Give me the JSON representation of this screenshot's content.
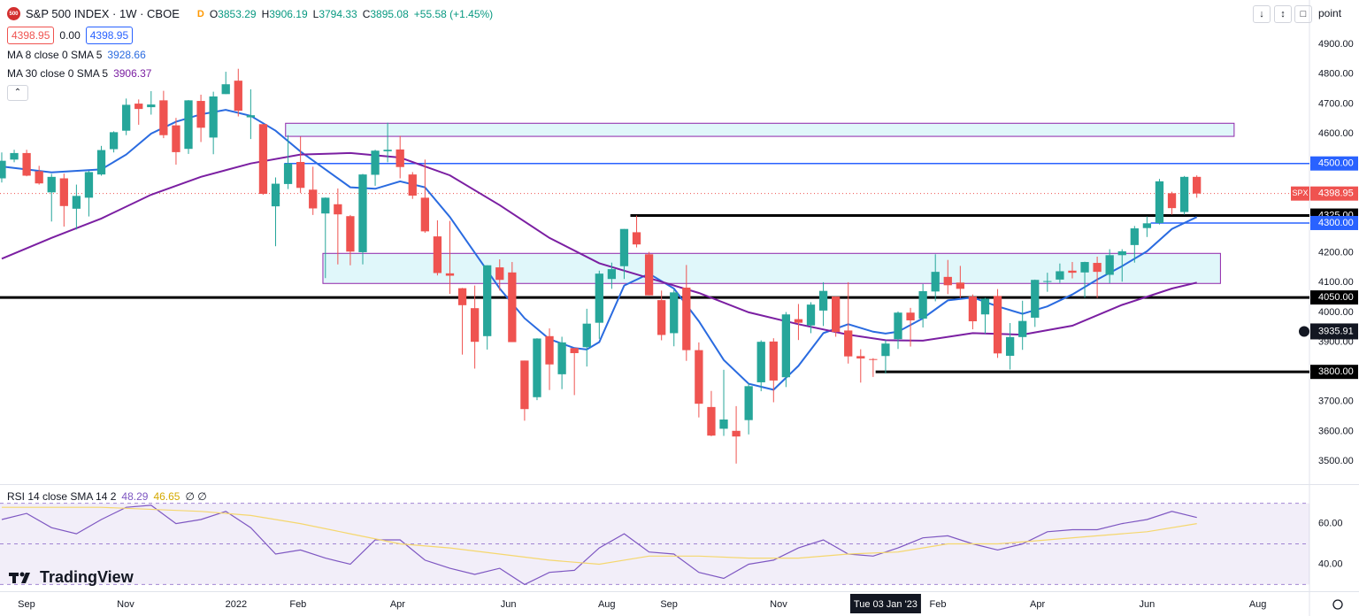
{
  "header": {
    "logo_text": "500",
    "symbol": "S&P 500 INDEX · 1W · CBOE",
    "badge": "D",
    "ohlc": [
      {
        "label": "O",
        "value": 3853.29
      },
      {
        "label": "H",
        "value": 3906.19
      },
      {
        "label": "L",
        "value": 3794.33
      },
      {
        "label": "C",
        "value": 3895.08
      }
    ],
    "change": "+55.58 (+1.45%)",
    "bid": 4398.95,
    "spread": {
      "value": 0,
      "label": "0.00"
    },
    "ask": 4398.95,
    "scale_mode": "point",
    "watermark": "TradingView"
  },
  "chart_data": [
    {
      "type": "candlestick",
      "up_color": "#26a69a",
      "down_color": "#ef5350",
      "xlim": [
        -0.14,
        105.05
      ],
      "ylim": [
        3423,
        5049
      ],
      "yticks": [
        {
          "value": 3500,
          "label": "3500.00"
        },
        {
          "value": 3600,
          "label": "3600.00"
        },
        {
          "value": 3700,
          "label": "3700.00"
        },
        {
          "value": 3800,
          "label": "3800.00"
        },
        {
          "value": 3900,
          "label": "3900.00"
        },
        {
          "value": 4000,
          "label": "4000.00"
        },
        {
          "value": 4100,
          "label": "4100.00"
        },
        {
          "value": 4200,
          "label": "4200.00"
        },
        {
          "value": 4300,
          "label": "4300.00"
        },
        {
          "value": 4400,
          "label": "4400.00"
        },
        {
          "value": 4500,
          "label": "4500.00"
        },
        {
          "value": 4600,
          "label": "4600.00"
        },
        {
          "value": 4700,
          "label": "4700.00"
        },
        {
          "value": 4800,
          "label": "4800.00"
        },
        {
          "value": 4900,
          "label": "4900.00"
        }
      ],
      "xticks": [
        {
          "value": 1.99,
          "label": "Sep"
        },
        {
          "value": 9.95,
          "label": "Nov"
        },
        {
          "value": 18.83,
          "label": "2022"
        },
        {
          "value": 23.8,
          "label": "Feb"
        },
        {
          "value": 31.8,
          "label": "Apr"
        },
        {
          "value": 40.7,
          "label": "Jun"
        },
        {
          "value": 48.6,
          "label": "Aug"
        },
        {
          "value": 53.6,
          "label": "Sep"
        },
        {
          "value": 62.4,
          "label": "Nov"
        },
        {
          "value": 75.2,
          "label": "Feb"
        },
        {
          "value": 83.2,
          "label": "Apr"
        },
        {
          "value": 92.0,
          "label": "Jun"
        },
        {
          "value": 100.9,
          "label": "Aug"
        }
      ],
      "ohlc": [
        [
          4450,
          4537,
          4436,
          4509
        ],
        [
          4513,
          4546,
          4504,
          4535
        ],
        [
          4535,
          4546,
          4457,
          4459
        ],
        [
          4474,
          4492,
          4429,
          4433
        ],
        [
          4403,
          4465,
          4305,
          4455
        ],
        [
          4450,
          4466,
          4288,
          4357
        ],
        [
          4348,
          4429,
          4278,
          4391
        ],
        [
          4385,
          4475,
          4322,
          4471
        ],
        [
          4463,
          4559,
          4459,
          4545
        ],
        [
          4548,
          4608,
          4537,
          4605
        ],
        [
          4610,
          4718,
          4595,
          4697
        ],
        [
          4701,
          4715,
          4630,
          4683
        ],
        [
          4689,
          4743,
          4664,
          4698
        ],
        [
          4712,
          4744,
          4585,
          4595
        ],
        [
          4628,
          4653,
          4496,
          4538
        ],
        [
          4549,
          4713,
          4532,
          4712
        ],
        [
          4710,
          4731,
          4572,
          4620
        ],
        [
          4587,
          4741,
          4531,
          4725
        ],
        [
          4733,
          4808,
          4733,
          4766
        ],
        [
          4778,
          4818,
          4658,
          4677
        ],
        [
          4655,
          4749,
          4582,
          4662
        ],
        [
          4632,
          4632,
          4395,
          4398
        ],
        [
          4356,
          4453,
          4222,
          4432
        ],
        [
          4431,
          4595,
          4414,
          4500
        ],
        [
          4505,
          4590,
          4401,
          4418
        ],
        [
          4412,
          4489,
          4327,
          4349
        ],
        [
          4332,
          4386,
          4115,
          4385
        ],
        [
          4363,
          4416,
          4161,
          4329
        ],
        [
          4323,
          4327,
          4158,
          4204
        ],
        [
          4202,
          4465,
          4161,
          4463
        ],
        [
          4462,
          4546,
          4425,
          4543
        ],
        [
          4541,
          4637,
          4504,
          4546
        ],
        [
          4547,
          4593,
          4450,
          4488
        ],
        [
          4463,
          4471,
          4381,
          4392
        ],
        [
          4385,
          4513,
          4267,
          4272
        ],
        [
          4255,
          4309,
          4124,
          4132
        ],
        [
          4131,
          4307,
          4062,
          4123
        ],
        [
          4081,
          4082,
          3858,
          4024
        ],
        [
          4014,
          4090,
          3811,
          3901
        ],
        [
          3920,
          4158,
          3875,
          4158
        ],
        [
          4151,
          4178,
          4073,
          4109
        ],
        [
          4134,
          4169,
          3900,
          3900
        ],
        [
          3838,
          3838,
          3636,
          3675
        ],
        [
          3715,
          3913,
          3705,
          3912
        ],
        [
          3920,
          3946,
          3739,
          3825
        ],
        [
          3792,
          3918,
          3742,
          3899
        ],
        [
          3880,
          3880,
          3722,
          3863
        ],
        [
          3883,
          4012,
          3818,
          3962
        ],
        [
          3965,
          4140,
          3911,
          4130
        ],
        [
          4112,
          4167,
          4079,
          4145
        ],
        [
          4155,
          4280,
          4112,
          4280
        ],
        [
          4269,
          4325,
          4218,
          4228
        ],
        [
          4195,
          4203,
          4057,
          4057
        ],
        [
          4041,
          4073,
          3906,
          3924
        ],
        [
          3930,
          4076,
          3886,
          4067
        ],
        [
          4083,
          4159,
          3837,
          3873
        ],
        [
          3873,
          3899,
          3647,
          3693
        ],
        [
          3682,
          3736,
          3584,
          3586
        ],
        [
          3609,
          3807,
          3585,
          3640
        ],
        [
          3602,
          3685,
          3492,
          3583
        ],
        [
          3638,
          3762,
          3590,
          3752
        ],
        [
          3765,
          3906,
          3735,
          3901
        ],
        [
          3902,
          3913,
          3698,
          3771
        ],
        [
          3782,
          4001,
          3749,
          3993
        ],
        [
          3977,
          4028,
          3907,
          3965
        ],
        [
          3956,
          4034,
          3930,
          4026
        ],
        [
          4006,
          4101,
          3954,
          4072
        ],
        [
          4053,
          4053,
          3918,
          3934
        ],
        [
          3939,
          4101,
          3828,
          3852
        ],
        [
          3853,
          3876,
          3764,
          3845
        ],
        [
          3843,
          3846,
          3783,
          3840
        ],
        [
          3853.29,
          3906.19,
          3794.33,
          3895.08
        ],
        [
          3910,
          4003,
          3877,
          3999
        ],
        [
          3999,
          4015,
          3885,
          3973
        ],
        [
          3979,
          4095,
          3949,
          4071
        ],
        [
          4070,
          4195,
          4037,
          4136
        ],
        [
          4119,
          4176,
          4061,
          4091
        ],
        [
          4100,
          4156,
          4048,
          4079
        ],
        [
          4053,
          4060,
          3943,
          3970
        ],
        [
          3993,
          4049,
          3928,
          4046
        ],
        [
          4055,
          4078,
          3847,
          3862
        ],
        [
          3854,
          3964,
          3808,
          3917
        ],
        [
          3917,
          4039,
          3874,
          3971
        ],
        [
          3982,
          4110,
          3951,
          4109
        ],
        [
          4102,
          4133,
          4069,
          4105
        ],
        [
          4110,
          4164,
          4099,
          4138
        ],
        [
          4140,
          4169,
          4114,
          4133
        ],
        [
          4134,
          4170,
          4049,
          4169
        ],
        [
          4166,
          4187,
          4048,
          4136
        ],
        [
          4126,
          4212,
          4098,
          4192
        ],
        [
          4192,
          4212,
          4103,
          4205
        ],
        [
          4226,
          4290,
          4167,
          4282
        ],
        [
          4283,
          4322,
          4253,
          4299
        ],
        [
          4300,
          4448,
          4295,
          4440
        ],
        [
          4400,
          4405,
          4328,
          4350
        ],
        [
          4337,
          4458,
          4328,
          4455
        ],
        [
          4455,
          4460,
          4385,
          4398.95
        ]
      ],
      "lines": [
        {
          "name": "MA 8 close 0 SMA 5",
          "color": "#2a6be0",
          "legend_value": 3928.66,
          "x": [
            0,
            4,
            8,
            10,
            12,
            14,
            16,
            18,
            20,
            22,
            24,
            26,
            28,
            30,
            32,
            34,
            36,
            38,
            40,
            42,
            44,
            46,
            47,
            48,
            50,
            52,
            54,
            56,
            58,
            60,
            62,
            64,
            66,
            68,
            70,
            71,
            72,
            74,
            76,
            78,
            80,
            82,
            84,
            86,
            88,
            90,
            92,
            94,
            96
          ],
          "values": [
            4490,
            4470,
            4480,
            4530,
            4600,
            4640,
            4665,
            4680,
            4660,
            4610,
            4540,
            4480,
            4420,
            4415,
            4440,
            4420,
            4320,
            4200,
            4080,
            3980,
            3910,
            3880,
            3875,
            3900,
            4090,
            4130,
            4080,
            3970,
            3840,
            3760,
            3740,
            3820,
            3930,
            3960,
            3935,
            3928.66,
            3935,
            3980,
            4040,
            4050,
            4020,
            3995,
            4020,
            4060,
            4110,
            4155,
            4205,
            4280,
            4320
          ]
        },
        {
          "name": "MA 30 close 0 SMA 5",
          "color": "#7b1fa2",
          "legend_value": 3906.37,
          "x": [
            0,
            4,
            8,
            12,
            16,
            20,
            24,
            28,
            32,
            36,
            40,
            44,
            48,
            52,
            56,
            60,
            64,
            68,
            71,
            74,
            78,
            82,
            86,
            90,
            94,
            96
          ],
          "values": [
            4180,
            4250,
            4315,
            4395,
            4455,
            4500,
            4530,
            4535,
            4520,
            4460,
            4360,
            4250,
            4165,
            4115,
            4065,
            4000,
            3960,
            3925,
            3906.37,
            3905,
            3930,
            3925,
            3955,
            4025,
            4080,
            4100
          ]
        }
      ],
      "levels": [
        {
          "value": 4500,
          "label": "4500.00",
          "from": 22.7,
          "color": "#2962ff",
          "width": 1.5
        },
        {
          "value": 4325,
          "label": "4325.00",
          "from": 50.5,
          "color": "#000000",
          "width": 3
        },
        {
          "value": 4300,
          "label": "4300.00",
          "from": 92.3,
          "color": "#2962ff",
          "width": 1.5
        },
        {
          "value": 4050,
          "label": "4050.00",
          "from": -0.14,
          "color": "#000000",
          "width": 3
        },
        {
          "value": 3800,
          "label": "3800.00",
          "from": 70.2,
          "color": "#000000",
          "width": 3
        }
      ],
      "zones": [
        {
          "from": 22.8,
          "to": 99.0,
          "low": 4591,
          "high": 4635,
          "fill": "#e0f7fa",
          "stroke": "#8e24aa"
        },
        {
          "from": 25.8,
          "to": 97.9,
          "low": 4097,
          "high": 4198,
          "fill": "#e0f7fa",
          "stroke": "#8e24aa"
        }
      ],
      "last_price": {
        "name": "SPX",
        "value": 4398.95,
        "color": "#ef5350"
      },
      "crosshair": {
        "x": 71,
        "label": "Tue 03 Jan '23",
        "price": 3935.91
      }
    },
    {
      "type": "line",
      "title": "RSI 14 close SMA 14 2",
      "extra": "∅ ∅",
      "xlim": [
        -0.14,
        105.05
      ],
      "ylim": [
        26.7,
        79
      ],
      "yticks": [
        {
          "value": 40,
          "label": "40.00"
        },
        {
          "value": 60,
          "label": "60.00"
        }
      ],
      "bands": [
        70,
        50,
        30
      ],
      "band_color": "#7e57c2",
      "series": [
        {
          "color": "#7e57c2",
          "legend_value": 48.29,
          "x": [
            0,
            2,
            4,
            6,
            8,
            10,
            12,
            14,
            16,
            18,
            20,
            22,
            24,
            26,
            28,
            30,
            32,
            34,
            36,
            38,
            40,
            42,
            44,
            46,
            48,
            50,
            52,
            54,
            56,
            58,
            60,
            62,
            64,
            66,
            68,
            70,
            72,
            74,
            76,
            78,
            80,
            82,
            84,
            86,
            88,
            90,
            92,
            94,
            96
          ],
          "values": [
            62,
            65,
            58,
            55,
            62,
            68,
            69,
            60,
            62,
            66,
            58,
            45,
            47,
            43,
            40,
            52,
            52,
            42,
            38,
            35,
            38,
            30,
            36,
            37,
            48,
            55,
            46,
            45,
            36,
            33,
            40,
            42,
            48,
            52,
            45,
            44,
            48,
            53,
            54,
            50,
            47,
            50,
            56,
            57,
            57,
            60,
            62,
            66,
            63
          ]
        },
        {
          "color": "#f5d76e",
          "legend_value": 46.65,
          "x": [
            0,
            8,
            16,
            20,
            24,
            28,
            32,
            36,
            40,
            44,
            48,
            52,
            56,
            60,
            64,
            68,
            72,
            76,
            80,
            84,
            88,
            92,
            96
          ],
          "values": [
            68,
            68,
            66,
            64,
            60,
            55,
            50,
            48,
            45,
            42,
            40,
            44,
            44,
            43,
            43,
            45,
            46,
            50,
            50,
            52,
            54,
            56,
            60
          ]
        }
      ]
    }
  ]
}
